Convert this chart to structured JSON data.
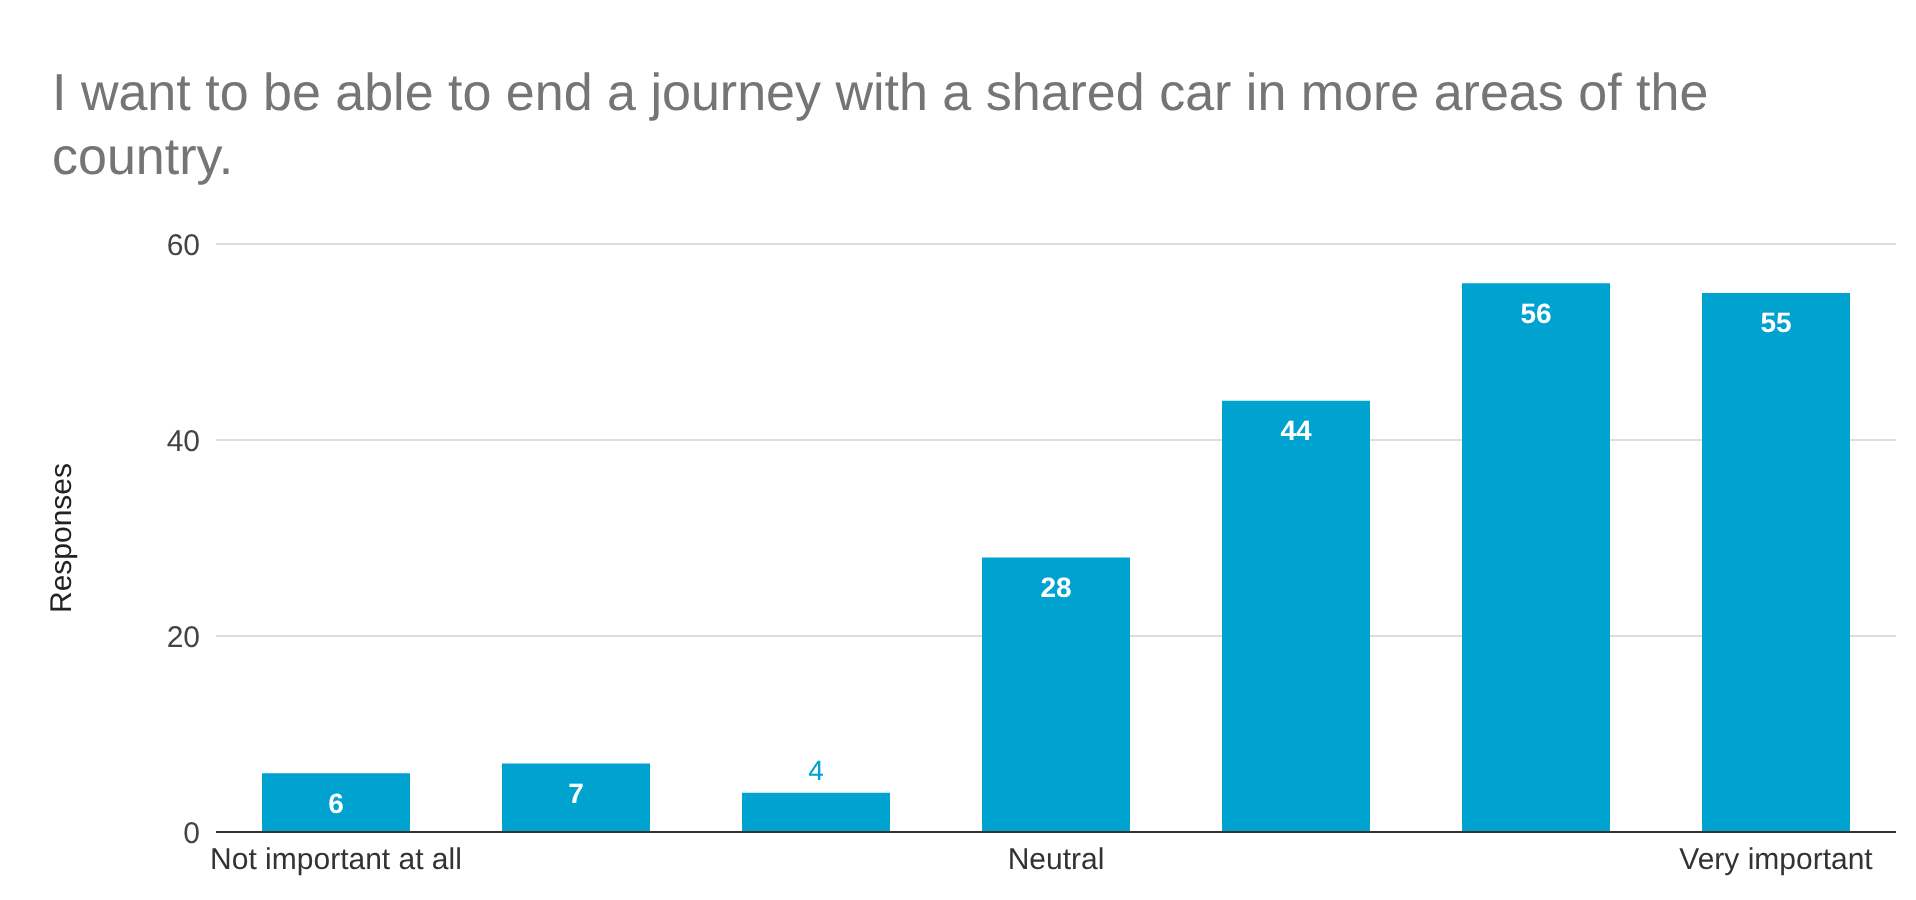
{
  "chart_data": {
    "type": "bar",
    "title": "I want to be able to end a journey with a shared car in more areas of the country.",
    "ylabel": "Responses",
    "categories": [
      "Not important at all",
      null,
      null,
      "Neutral",
      null,
      null,
      "Very important"
    ],
    "values": [
      6,
      7,
      4,
      28,
      44,
      56,
      55
    ],
    "color": "#00a3d0",
    "ylim": [
      0,
      60
    ],
    "yticks": [
      0,
      20,
      40,
      60
    ],
    "grid": "y",
    "data_labels": true
  }
}
